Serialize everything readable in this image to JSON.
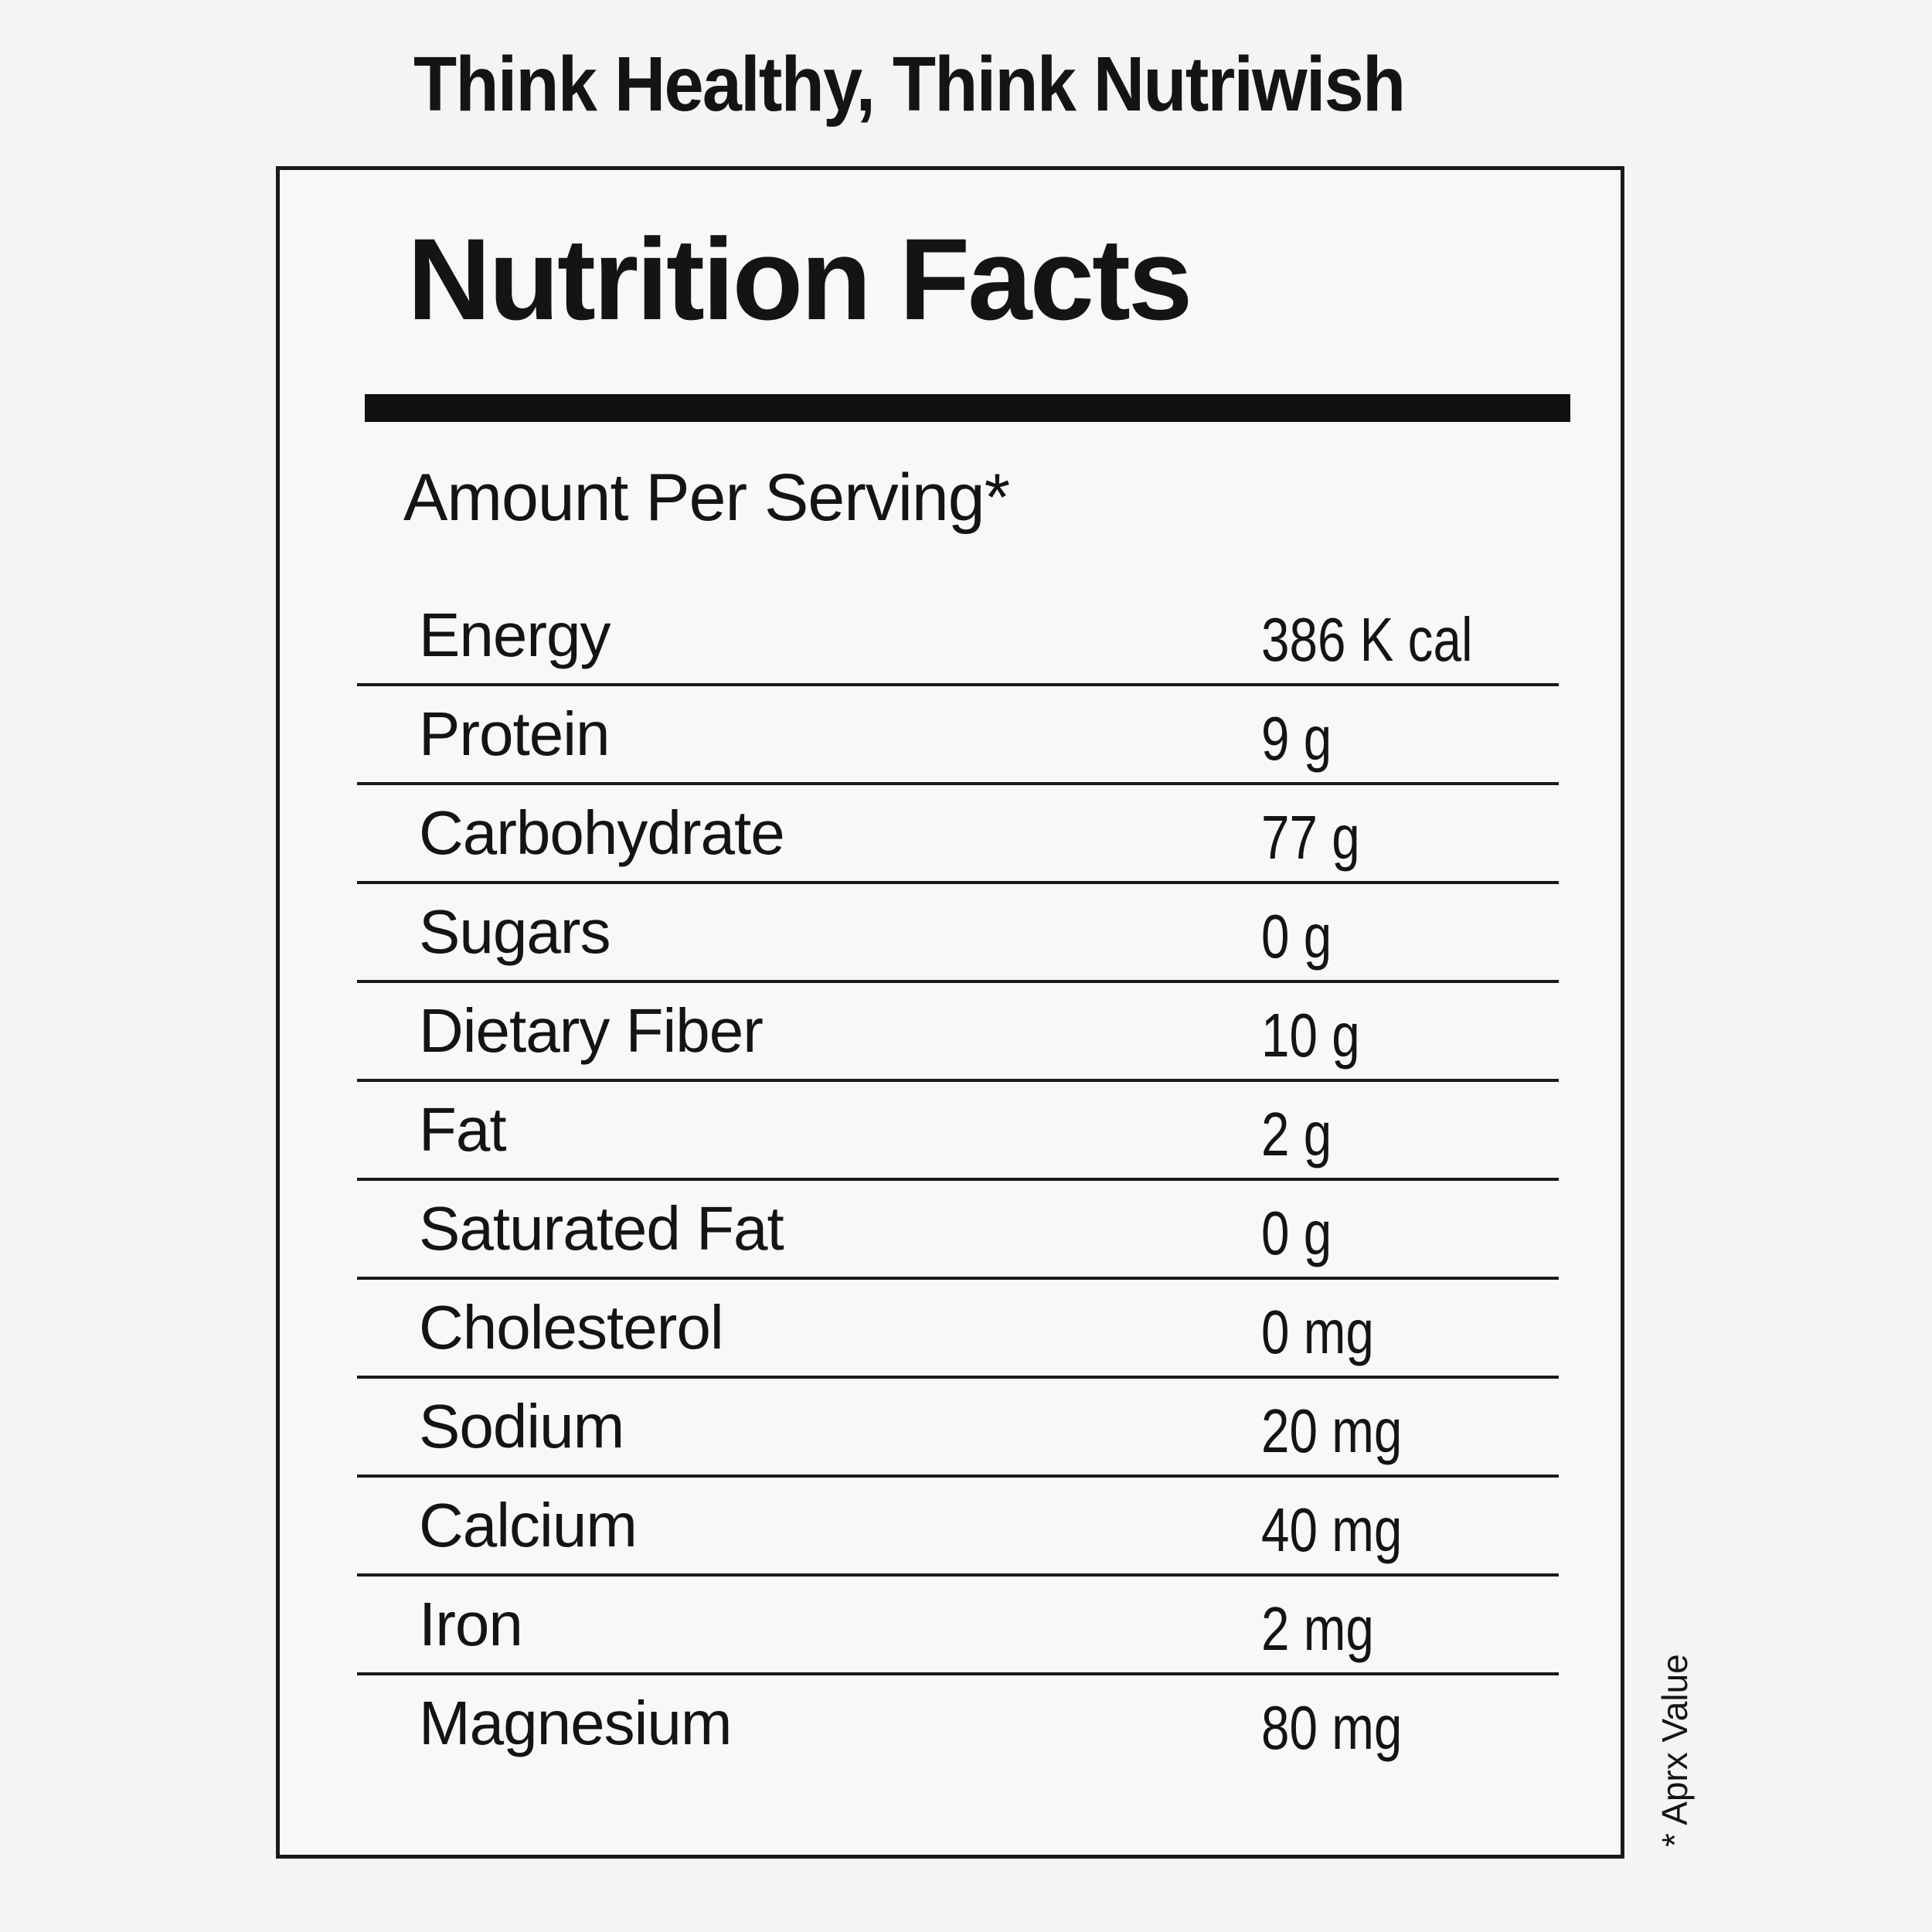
{
  "tagline": "Think Healthy, Think Nutriwish",
  "label": {
    "title": "Nutrition Facts",
    "serving_heading": "Amount Per Serving*",
    "rows": [
      {
        "name": "Energy",
        "value": "386 K cal"
      },
      {
        "name": "Protein",
        "value": "9 g"
      },
      {
        "name": "Carbohydrate",
        "value": "77 g"
      },
      {
        "name": "Sugars",
        "value": "0 g"
      },
      {
        "name": "Dietary Fiber",
        "value": "10 g"
      },
      {
        "name": "Fat",
        "value": "2 g"
      },
      {
        "name": "Saturated Fat",
        "value": "0 g"
      },
      {
        "name": "Cholesterol",
        "value": "0 mg"
      },
      {
        "name": "Sodium",
        "value": "20 mg"
      },
      {
        "name": "Calcium",
        "value": "40 mg"
      },
      {
        "name": "Iron",
        "value": "2 mg"
      },
      {
        "name": "Magnesium",
        "value": "80 mg"
      }
    ]
  },
  "footnote": "* Aprx Value"
}
